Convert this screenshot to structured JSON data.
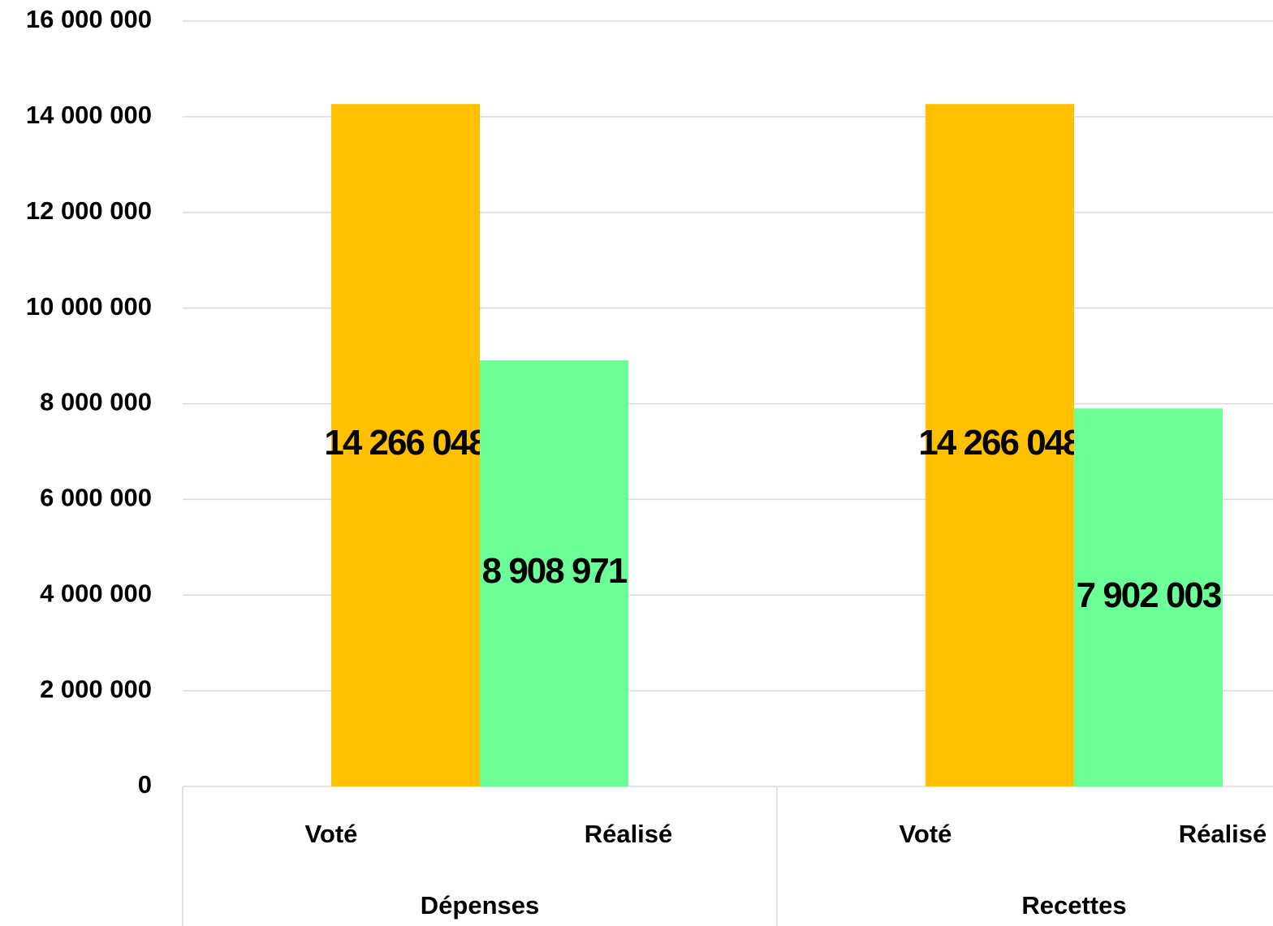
{
  "chart_data": {
    "type": "bar",
    "categories": [
      "Dépenses",
      "Recettes"
    ],
    "series": [
      {
        "name": "Voté",
        "color": "#ffc000",
        "values": [
          14266048,
          14266048
        ],
        "value_labels": [
          "14 266 048",
          "14 266 048"
        ]
      },
      {
        "name": "Réalisé",
        "color": "#6bff97",
        "values": [
          8908971,
          7902003
        ],
        "value_labels": [
          "8 908 971",
          "7 902 003"
        ]
      }
    ],
    "ylim": [
      0,
      16000000
    ],
    "yticks": [
      0,
      {
        "value": 2000000,
        "label": "2 000 000"
      },
      {
        "value": 4000000,
        "label": "4 000 000"
      },
      {
        "value": 6000000,
        "label": "6 000 000"
      },
      {
        "value": 8000000,
        "label": "8 000 000"
      },
      {
        "value": 10000000,
        "label": "10 000 000"
      },
      {
        "value": 12000000,
        "label": "12 000 000"
      },
      {
        "value": 14000000,
        "label": "14 000 000"
      },
      {
        "value": 16000000,
        "label": "16 000 000"
      }
    ],
    "grid": true
  }
}
